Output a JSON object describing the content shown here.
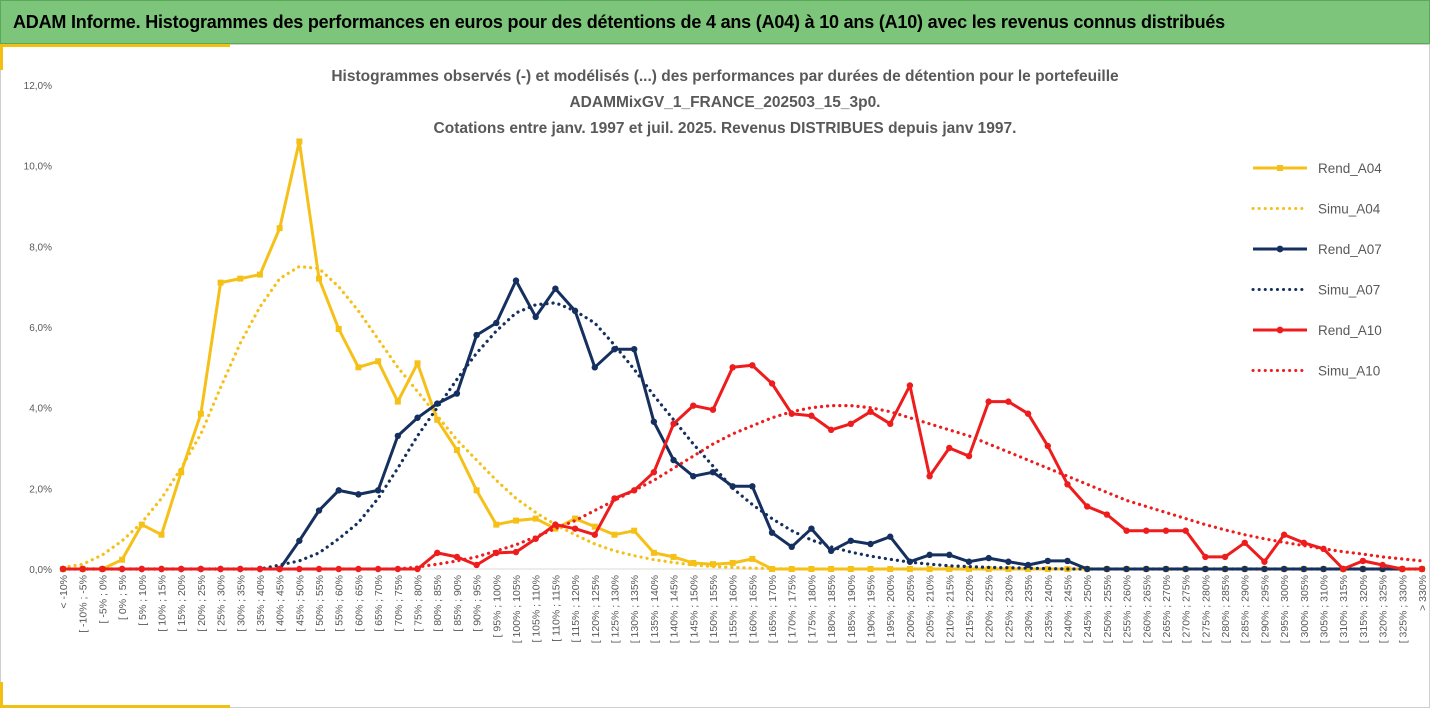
{
  "banner": {
    "title": "ADAM Informe. Histogrammes des performances en euros pour des détentions de 4 ans (A04) à 10 ans (A10) avec les revenus connus distribués"
  },
  "colors": {
    "banner_bg": "#7dc57a",
    "accent": "#f2c012",
    "yellow": "#f5c018",
    "navy": "#15305e",
    "red": "#ee1c1c",
    "axis_text": "#595959"
  },
  "chart_data": {
    "type": "line",
    "title_lines": [
      "Histogrammes observés (-) et modélisés (...) des performances par durées de détention pour le portefeuille",
      "ADAMMixGV_1_FRANCE_202503_15_3p0.",
      "Cotations entre janv. 1997 et juil. 2025. Revenus DISTRIBUES depuis janv 1997."
    ],
    "xlabel": "",
    "ylabel": "",
    "ylim": [
      0,
      12
    ],
    "y_ticks": [
      "0,0%",
      "2,0%",
      "4,0%",
      "6,0%",
      "8,0%",
      "10,0%",
      "12,0%"
    ],
    "y_tick_values": [
      0,
      2,
      4,
      6,
      8,
      10,
      12
    ],
    "grid": false,
    "legend_position": "right",
    "categories": [
      "< -10%",
      "[ -10% ; -5%",
      "[ -5% ; 0%",
      "[ 0% ; 5%",
      "[ 5% ; 10%",
      "[ 10% ; 15%",
      "[ 15% ; 20%",
      "[ 20% ; 25%",
      "[ 25% ; 30%",
      "[ 30% ; 35%",
      "[ 35% ; 40%",
      "[ 40% ; 45%",
      "[ 45% ; 50%",
      "[ 50% ; 55%",
      "[ 55% ; 60%",
      "[ 60% ; 65%",
      "[ 65% ; 70%",
      "[ 70% ; 75%",
      "[ 75% ; 80%",
      "[ 80% ; 85%",
      "[ 85% ; 90%",
      "[ 90% ; 95%",
      "[ 95% ; 100%",
      "[ 100% ; 105%",
      "[ 105% ; 110%",
      "[ 110% ; 115%",
      "[ 115% ; 120%",
      "[ 120% ; 125%",
      "[ 125% ; 130%",
      "[ 130% ; 135%",
      "[ 135% ; 140%",
      "[ 140% ; 145%",
      "[ 145% ; 150%",
      "[ 150% ; 155%",
      "[ 155% ; 160%",
      "[ 160% ; 165%",
      "[ 165% ; 170%",
      "[ 170% ; 175%",
      "[ 175% ; 180%",
      "[ 180% ; 185%",
      "[ 185% ; 190%",
      "[ 190% ; 195%",
      "[ 195% ; 200%",
      "[ 200% ; 205%",
      "[ 205% ; 210%",
      "[ 210% ; 215%",
      "[ 215% ; 220%",
      "[ 220% ; 225%",
      "[ 225% ; 230%",
      "[ 230% ; 235%",
      "[ 235% ; 240%",
      "[ 240% ; 245%",
      "[ 245% ; 250%",
      "[ 250% ; 255%",
      "[ 255% ; 260%",
      "[ 260% ; 265%",
      "[ 265% ; 270%",
      "[ 270% ; 275%",
      "[ 275% ; 280%",
      "[ 280% ; 285%",
      "[ 285% ; 290%",
      "[ 290% ; 295%",
      "[ 295% ; 300%",
      "[ 300% ; 305%",
      "[ 305% ; 310%",
      "[ 310% ; 315%",
      "[ 315% ; 320%",
      "[ 320% ; 325%",
      "[ 325% ; 330%",
      "> 330%"
    ],
    "series": [
      {
        "name": "Rend_A04",
        "style": "solid-square",
        "color": "#f5c018",
        "values": [
          0,
          0,
          0,
          0.23,
          1.1,
          0.85,
          2.4,
          3.85,
          7.1,
          7.2,
          7.3,
          8.45,
          10.6,
          7.2,
          5.95,
          5.0,
          5.15,
          4.15,
          5.1,
          3.7,
          2.95,
          1.95,
          1.1,
          1.2,
          1.25,
          1.0,
          1.25,
          1.05,
          0.85,
          0.95,
          0.4,
          0.3,
          0.15,
          0.12,
          0.15,
          0.25,
          0,
          0,
          0,
          0,
          0,
          0,
          0,
          0,
          0,
          0,
          0,
          0,
          0,
          0,
          0,
          0,
          0,
          0,
          0,
          0,
          0,
          0,
          0,
          0,
          0,
          0,
          0,
          0,
          0,
          0,
          0,
          0,
          0,
          0
        ]
      },
      {
        "name": "Simu_A04",
        "style": "dotted",
        "color": "#f5c018",
        "values": [
          0.04,
          0.12,
          0.35,
          0.7,
          1.15,
          1.75,
          2.5,
          3.35,
          4.5,
          5.6,
          6.5,
          7.2,
          7.5,
          7.45,
          7.0,
          6.4,
          5.7,
          5.0,
          4.4,
          3.8,
          3.2,
          2.7,
          2.2,
          1.75,
          1.4,
          1.1,
          0.85,
          0.62,
          0.45,
          0.33,
          0.23,
          0.16,
          0.1,
          0.06,
          0.04,
          0.02,
          0.01,
          0,
          0,
          0,
          0,
          0,
          0,
          0,
          0,
          0,
          0,
          0,
          0,
          0,
          0,
          0,
          0,
          0,
          0,
          0,
          0,
          0,
          0,
          0,
          0,
          0,
          0,
          0,
          0,
          0,
          0,
          0,
          0,
          0
        ]
      },
      {
        "name": "Rend_A07",
        "style": "solid-dot",
        "color": "#15305e",
        "values": [
          0,
          0,
          0,
          0,
          0,
          0,
          0,
          0,
          0,
          0,
          0,
          0,
          0.7,
          1.45,
          1.95,
          1.85,
          1.95,
          3.3,
          3.75,
          4.1,
          4.35,
          5.8,
          6.1,
          7.15,
          6.25,
          6.95,
          6.4,
          5.0,
          5.45,
          5.45,
          3.65,
          2.7,
          2.3,
          2.4,
          2.05,
          2.05,
          0.9,
          0.55,
          1.0,
          0.45,
          0.7,
          0.62,
          0.8,
          0.18,
          0.35,
          0.35,
          0.18,
          0.27,
          0.18,
          0.1,
          0.2,
          0.2,
          0,
          0,
          0,
          0,
          0,
          0,
          0,
          0,
          0,
          0,
          0,
          0,
          0,
          0,
          0,
          0,
          0,
          0
        ]
      },
      {
        "name": "Simu_A07",
        "style": "dotted",
        "color": "#15305e",
        "values": [
          0,
          0,
          0,
          0,
          0,
          0,
          0,
          0,
          0,
          0,
          0,
          0.1,
          0.2,
          0.4,
          0.75,
          1.15,
          1.75,
          2.5,
          3.3,
          4.0,
          4.7,
          5.35,
          5.9,
          6.35,
          6.55,
          6.6,
          6.4,
          6.1,
          5.55,
          4.95,
          4.3,
          3.7,
          3.1,
          2.55,
          2.0,
          1.6,
          1.25,
          0.95,
          0.72,
          0.55,
          0.42,
          0.32,
          0.24,
          0.17,
          0.12,
          0.08,
          0.06,
          0.04,
          0.03,
          0.02,
          0.01,
          0,
          0,
          0,
          0,
          0,
          0,
          0,
          0,
          0,
          0,
          0,
          0,
          0,
          0,
          0,
          0,
          0,
          0,
          0
        ]
      },
      {
        "name": "Rend_A10",
        "style": "solid-dot",
        "color": "#ee1c1c",
        "values": [
          0,
          0,
          0,
          0,
          0,
          0,
          0,
          0,
          0,
          0,
          0,
          0,
          0,
          0,
          0,
          0,
          0,
          0,
          0,
          0.4,
          0.3,
          0.1,
          0.4,
          0.42,
          0.75,
          1.1,
          1.0,
          0.85,
          1.75,
          1.95,
          2.4,
          3.6,
          4.05,
          3.95,
          5.0,
          5.05,
          4.6,
          3.85,
          3.8,
          3.45,
          3.6,
          3.9,
          3.6,
          4.55,
          2.3,
          3.0,
          2.8,
          4.15,
          4.15,
          3.85,
          3.05,
          2.1,
          1.55,
          1.35,
          0.95,
          0.95,
          0.95,
          0.95,
          0.3,
          0.3,
          0.65,
          0.18,
          0.85,
          0.65,
          0.5,
          0,
          0.2,
          0.1,
          0,
          0
        ]
      },
      {
        "name": "Simu_A10",
        "style": "dotted",
        "color": "#ee1c1c",
        "values": [
          0,
          0,
          0,
          0,
          0,
          0,
          0,
          0,
          0,
          0,
          0,
          0,
          0,
          0,
          0,
          0,
          0,
          0,
          0.05,
          0.12,
          0.2,
          0.3,
          0.45,
          0.6,
          0.8,
          1.0,
          1.2,
          1.45,
          1.7,
          1.95,
          2.2,
          2.5,
          2.8,
          3.1,
          3.35,
          3.55,
          3.75,
          3.9,
          4.0,
          4.05,
          4.05,
          4.0,
          3.9,
          3.75,
          3.6,
          3.45,
          3.3,
          3.1,
          2.9,
          2.7,
          2.5,
          2.3,
          2.1,
          1.9,
          1.7,
          1.55,
          1.4,
          1.25,
          1.1,
          0.97,
          0.85,
          0.75,
          0.66,
          0.58,
          0.5,
          0.43,
          0.37,
          0.3,
          0.25,
          0.2
        ]
      }
    ]
  }
}
